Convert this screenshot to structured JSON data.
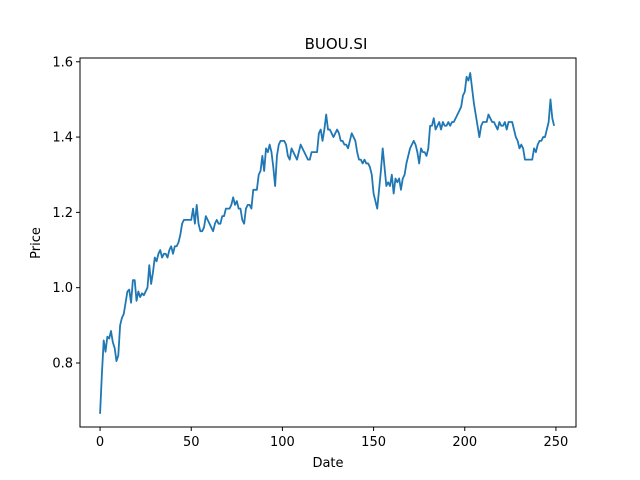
{
  "chart_data": {
    "type": "line",
    "title": "BUOU.SI",
    "xlabel": "Date",
    "ylabel": "Price",
    "xlim": [
      -11,
      261
    ],
    "ylim": [
      0.63,
      1.61
    ],
    "xticks": [
      0,
      50,
      100,
      150,
      200,
      250
    ],
    "xtick_labels": [
      "0",
      "50",
      "100",
      "150",
      "200",
      "250"
    ],
    "yticks": [
      0.8,
      1.0,
      1.2,
      1.4,
      1.6
    ],
    "ytick_labels": [
      "0.8",
      "1.0",
      "1.2",
      "1.4",
      "1.6"
    ],
    "grid": false,
    "line_color": "#1f77b4",
    "series": [
      {
        "x": [
          0,
          1,
          2,
          3,
          4,
          5,
          6,
          7,
          8,
          9,
          10,
          11,
          12,
          13,
          14,
          15,
          16,
          17,
          18,
          19,
          20,
          21,
          22,
          23,
          24,
          25,
          26,
          27,
          28,
          29,
          30,
          31,
          32,
          33,
          34,
          35,
          36,
          37,
          38,
          39,
          40,
          41,
          42,
          43,
          44,
          45,
          46,
          47,
          48,
          49,
          50,
          51,
          52,
          53,
          54,
          55,
          56,
          57,
          58,
          59,
          60,
          61,
          62,
          63,
          64,
          65,
          66,
          67,
          68,
          69,
          70,
          71,
          72,
          73,
          74,
          75,
          76,
          77,
          78,
          79,
          80,
          81,
          82,
          83,
          84,
          85,
          86,
          87,
          88,
          89,
          90,
          91,
          92,
          93,
          94,
          95,
          96,
          97,
          98,
          99,
          100,
          101,
          102,
          103,
          104,
          105,
          106,
          107,
          108,
          109,
          110,
          111,
          112,
          113,
          114,
          115,
          116,
          117,
          118,
          119,
          120,
          121,
          122,
          123,
          124,
          125,
          126,
          127,
          128,
          129,
          130,
          131,
          132,
          133,
          134,
          135,
          136,
          137,
          138,
          139,
          140,
          141,
          142,
          143,
          144,
          145,
          146,
          147,
          148,
          149,
          150,
          151,
          152,
          153,
          154,
          155,
          156,
          157,
          158,
          159,
          160,
          161,
          162,
          163,
          164,
          165,
          166,
          167,
          168,
          169,
          170,
          171,
          172,
          173,
          174,
          175,
          176,
          177,
          178,
          179,
          180,
          181,
          182,
          183,
          184,
          185,
          186,
          187,
          188,
          189,
          190,
          191,
          192,
          193,
          194,
          195,
          196,
          197,
          198,
          199,
          200,
          201,
          202,
          203,
          204,
          205,
          206,
          207,
          208,
          209,
          210,
          211,
          212,
          213,
          214,
          215,
          216,
          217,
          218,
          219,
          220,
          221,
          222,
          223,
          224,
          225,
          226,
          227,
          228,
          229,
          230,
          231,
          232,
          233,
          234,
          235,
          236,
          237,
          238,
          239,
          240,
          241,
          242,
          243,
          244,
          245,
          246,
          247,
          248,
          249
        ],
        "values": [
          0.665,
          0.77,
          0.86,
          0.83,
          0.87,
          0.865,
          0.885,
          0.855,
          0.84,
          0.805,
          0.82,
          0.9,
          0.92,
          0.93,
          0.96,
          0.99,
          0.995,
          0.96,
          1.02,
          1.02,
          0.965,
          0.99,
          0.975,
          0.985,
          0.98,
          0.99,
          1.0,
          1.06,
          1.01,
          1.04,
          1.08,
          1.07,
          1.09,
          1.1,
          1.08,
          1.09,
          1.09,
          1.08,
          1.1,
          1.11,
          1.09,
          1.11,
          1.11,
          1.12,
          1.14,
          1.17,
          1.18,
          1.18,
          1.18,
          1.18,
          1.18,
          1.21,
          1.17,
          1.22,
          1.17,
          1.15,
          1.15,
          1.16,
          1.19,
          1.18,
          1.17,
          1.16,
          1.15,
          1.17,
          1.18,
          1.17,
          1.17,
          1.19,
          1.19,
          1.21,
          1.21,
          1.21,
          1.22,
          1.24,
          1.22,
          1.23,
          1.21,
          1.21,
          1.18,
          1.17,
          1.21,
          1.22,
          1.22,
          1.21,
          1.26,
          1.26,
          1.26,
          1.3,
          1.31,
          1.35,
          1.31,
          1.37,
          1.36,
          1.38,
          1.36,
          1.32,
          1.27,
          1.35,
          1.38,
          1.39,
          1.39,
          1.39,
          1.38,
          1.35,
          1.34,
          1.37,
          1.36,
          1.35,
          1.34,
          1.36,
          1.38,
          1.37,
          1.36,
          1.35,
          1.34,
          1.34,
          1.36,
          1.36,
          1.36,
          1.36,
          1.41,
          1.42,
          1.39,
          1.42,
          1.46,
          1.42,
          1.42,
          1.41,
          1.4,
          1.41,
          1.42,
          1.41,
          1.39,
          1.39,
          1.38,
          1.38,
          1.37,
          1.39,
          1.41,
          1.4,
          1.39,
          1.36,
          1.34,
          1.34,
          1.33,
          1.34,
          1.33,
          1.33,
          1.32,
          1.3,
          1.25,
          1.23,
          1.21,
          1.26,
          1.31,
          1.37,
          1.32,
          1.27,
          1.28,
          1.27,
          1.3,
          1.25,
          1.29,
          1.28,
          1.29,
          1.26,
          1.29,
          1.3,
          1.33,
          1.35,
          1.37,
          1.38,
          1.39,
          1.38,
          1.36,
          1.33,
          1.37,
          1.36,
          1.36,
          1.35,
          1.37,
          1.43,
          1.43,
          1.45,
          1.42,
          1.43,
          1.44,
          1.42,
          1.44,
          1.43,
          1.43,
          1.44,
          1.43,
          1.44,
          1.44,
          1.45,
          1.46,
          1.47,
          1.48,
          1.51,
          1.52,
          1.56,
          1.55,
          1.57,
          1.53,
          1.49,
          1.46,
          1.43,
          1.4,
          1.43,
          1.44,
          1.44,
          1.44,
          1.46,
          1.45,
          1.44,
          1.44,
          1.43,
          1.42,
          1.44,
          1.43,
          1.43,
          1.44,
          1.42,
          1.44,
          1.44,
          1.44,
          1.42,
          1.4,
          1.39,
          1.37,
          1.38,
          1.37,
          1.34,
          1.34,
          1.34,
          1.34,
          1.34,
          1.37,
          1.36,
          1.38,
          1.39,
          1.39,
          1.4,
          1.4,
          1.42,
          1.44,
          1.5,
          1.45,
          1.43
        ]
      }
    ]
  }
}
